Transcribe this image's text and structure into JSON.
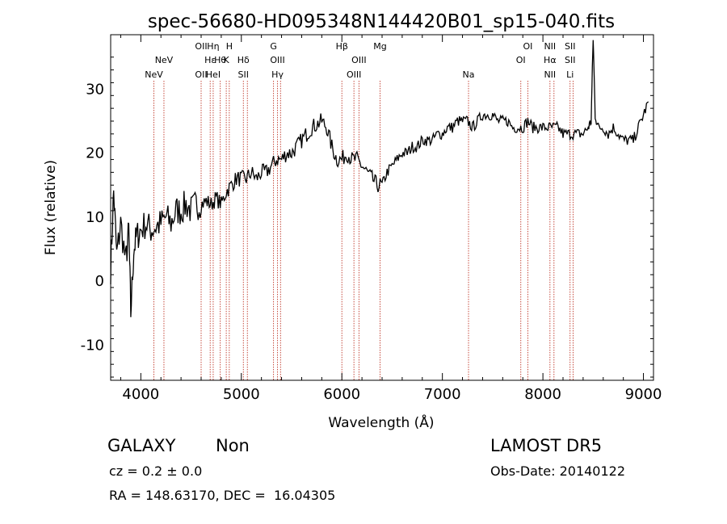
{
  "chart_data": {
    "type": "line",
    "title": "spec-56680-HD095348N144420B01_sp15-040.fits",
    "xlabel": "Wavelength (Å)",
    "ylabel": "Flux (relative)",
    "xlim": [
      3700,
      9100
    ],
    "ylim": [
      -15.5,
      38.5
    ],
    "xticks": [
      4000,
      5000,
      6000,
      7000,
      8000,
      9000
    ],
    "yticks": [
      -10,
      0,
      10,
      20,
      30
    ],
    "grid": false,
    "series": [
      {
        "x": [
          3700,
          3730,
          3760,
          3800,
          3850,
          3880,
          3900,
          3930,
          3960,
          4000,
          4050,
          4100,
          4150,
          4200,
          4250,
          4300,
          4350,
          4400,
          4450,
          4500,
          4550,
          4600,
          4650,
          4700,
          4750,
          4800,
          4850,
          4900,
          4950,
          5000,
          5050,
          5100,
          5150,
          5200,
          5250,
          5300,
          5350,
          5400,
          5450,
          5500,
          5550,
          5600,
          5650,
          5700,
          5750,
          5800,
          5850,
          5900,
          5950,
          6000,
          6050,
          6100,
          6150,
          6200,
          6250,
          6300,
          6350,
          6400,
          6450,
          6500,
          6550,
          6600,
          6650,
          6700,
          6750,
          6800,
          6850,
          6900,
          6950,
          7000,
          7050,
          7100,
          7150,
          7200,
          7250,
          7300,
          7350,
          7400,
          7450,
          7500,
          7550,
          7600,
          7650,
          7700,
          7750,
          7800,
          7850,
          7900,
          7950,
          8000,
          8050,
          8100,
          8150,
          8200,
          8250,
          8300,
          8350,
          8400,
          8450,
          8480,
          8500,
          8520,
          8550,
          8600,
          8650,
          8700,
          8750,
          8800,
          8850,
          8900,
          8950,
          9000,
          9050
        ],
        "y": [
          2,
          14,
          4,
          9,
          3,
          8,
          -5,
          5,
          7,
          8,
          9,
          8,
          8.5,
          9,
          10,
          9,
          11,
          11,
          12,
          11,
          12,
          12,
          12.5,
          12,
          13,
          12,
          14,
          15,
          16,
          16,
          16,
          17,
          16,
          17,
          17,
          18,
          19,
          19,
          20,
          20,
          21,
          22,
          23,
          24,
          24.5,
          25,
          24,
          21,
          19,
          19,
          20,
          19,
          19,
          18,
          17,
          16,
          15,
          15,
          17,
          18,
          19,
          20,
          20,
          21,
          21,
          22,
          22,
          22,
          23,
          23,
          24,
          24,
          25,
          25,
          25,
          24,
          25,
          26,
          26,
          26,
          25,
          25,
          25,
          24,
          24,
          24,
          25,
          24,
          24,
          24,
          24,
          24,
          24,
          23,
          23,
          23,
          23,
          23,
          24,
          25,
          38,
          26,
          24,
          24,
          23,
          24,
          23,
          22,
          22,
          22,
          24,
          26,
          28
        ]
      }
    ],
    "lines": [
      {
        "x": 4130,
        "top": "",
        "mid": "",
        "bot": "NeV"
      },
      {
        "x": 4230,
        "top": "",
        "mid": "NeV",
        "bot": ""
      },
      {
        "x": 4600,
        "top": "OII",
        "mid": "",
        "bot": "OII"
      },
      {
        "x": 4690,
        "top": "",
        "mid": "Hε",
        "bot": ""
      },
      {
        "x": 4720,
        "top": "Hη",
        "mid": "",
        "bot": "HeI"
      },
      {
        "x": 4790,
        "top": "",
        "mid": "Hθ",
        "bot": ""
      },
      {
        "x": 4850,
        "top": "",
        "mid": "K",
        "bot": ""
      },
      {
        "x": 4880,
        "top": "H",
        "mid": "",
        "bot": ""
      },
      {
        "x": 5020,
        "top": "",
        "mid": "Hδ",
        "bot": "SII"
      },
      {
        "x": 5060,
        "top": "",
        "mid": "",
        "bot": ""
      },
      {
        "x": 5320,
        "top": "G",
        "mid": "",
        "bot": ""
      },
      {
        "x": 5360,
        "top": "",
        "mid": "OIII",
        "bot": "Hγ"
      },
      {
        "x": 5390,
        "top": "",
        "mid": "",
        "bot": ""
      },
      {
        "x": 6000,
        "top": "Hβ",
        "mid": "",
        "bot": ""
      },
      {
        "x": 6120,
        "top": "",
        "mid": "",
        "bot": "OIII"
      },
      {
        "x": 6170,
        "top": "",
        "mid": "OIII",
        "bot": ""
      },
      {
        "x": 6380,
        "top": "Mg",
        "mid": "",
        "bot": ""
      },
      {
        "x": 7260,
        "top": "",
        "mid": "",
        "bot": "Na"
      },
      {
        "x": 7780,
        "top": "",
        "mid": "OI",
        "bot": ""
      },
      {
        "x": 7850,
        "top": "OI",
        "mid": "",
        "bot": ""
      },
      {
        "x": 8070,
        "top": "NII",
        "mid": "Hα",
        "bot": "NII"
      },
      {
        "x": 8110,
        "top": "",
        "mid": "",
        "bot": ""
      },
      {
        "x": 8270,
        "top": "SII",
        "mid": "SII",
        "bot": "Li"
      },
      {
        "x": 8300,
        "top": "",
        "mid": "",
        "bot": ""
      }
    ]
  },
  "footer": {
    "object_type": "GALAXY",
    "subclass": "Non",
    "survey": "LAMOST DR5",
    "cz": "cz = 0.2 ± 0.0",
    "obs_date": "Obs-Date: 20140122",
    "radec": "RA = 148.63170, DEC =  16.04305"
  },
  "colors": {
    "spectrum": "#000000",
    "line_markers": "#c0392b",
    "axes": "#000000"
  }
}
